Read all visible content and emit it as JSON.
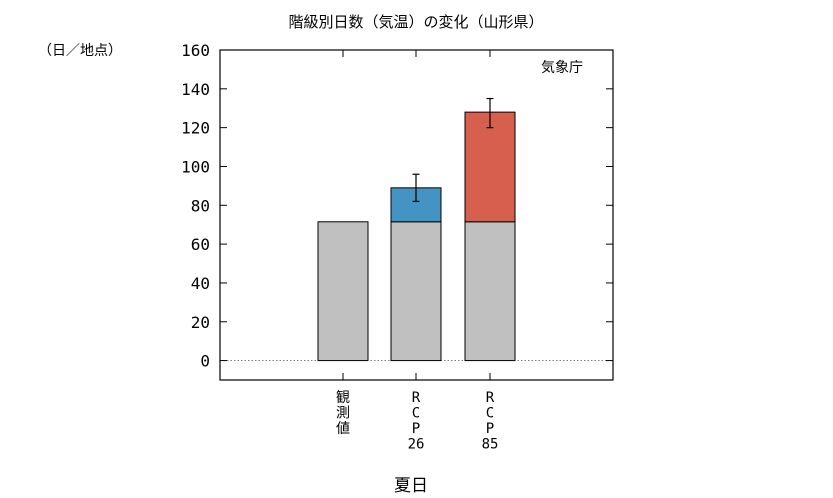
{
  "chart_data": {
    "type": "bar",
    "title": "階級別日数（気温）の変化（山形県）",
    "ylabel": "（日／地点）",
    "xlabel": "夏日",
    "source_label": "気象庁",
    "ylim": [
      -10,
      160
    ],
    "yticks": [
      0,
      20,
      40,
      60,
      80,
      100,
      120,
      140,
      160
    ],
    "categories": [
      {
        "label_lines": [
          "観",
          "測",
          "値"
        ]
      },
      {
        "label_lines": [
          "R",
          "C",
          "P",
          "26"
        ]
      },
      {
        "label_lines": [
          "R",
          "C",
          "P",
          "85"
        ]
      }
    ],
    "series": [
      {
        "values": [
          71.5,
          71.5,
          71.5
        ],
        "color": "#c0c0c0"
      },
      {
        "values": [
          0,
          17.5,
          56.5
        ],
        "colors": [
          "#4393c3",
          "#4393c3",
          "#d6604d"
        ]
      }
    ],
    "error_bars": [
      null,
      {
        "center": 89,
        "low": 82,
        "high": 96
      },
      {
        "center": 128,
        "low": 120,
        "high": 135
      }
    ],
    "grid": false,
    "zero_line": "dotted"
  }
}
